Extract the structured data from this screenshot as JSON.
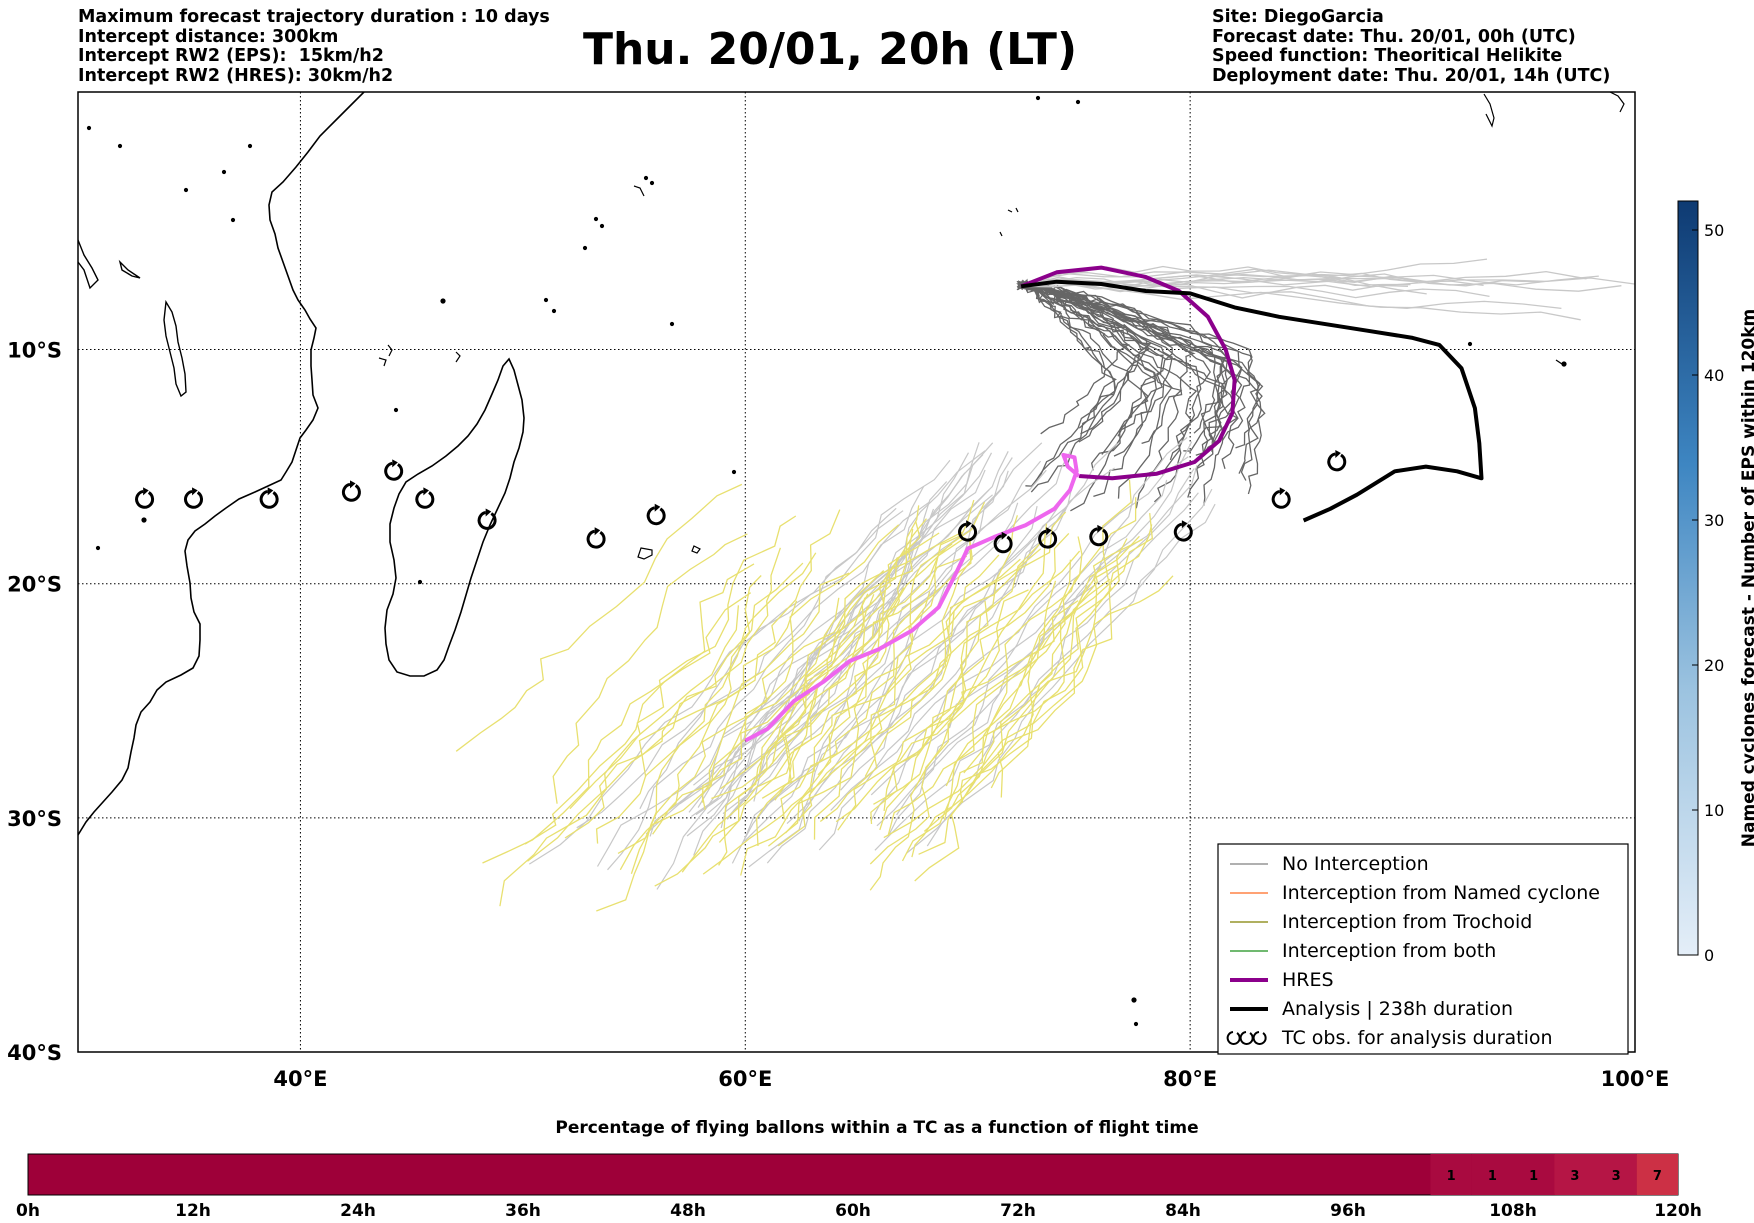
{
  "header_left": [
    "Maximum forecast trajectory duration : 10 days",
    "Intercept distance: 300km",
    "Intercept RW2 (EPS):  15km/h2",
    "Intercept RW2 (HRES): 30km/h2"
  ],
  "header_right": [
    "Site: DiegoGarcia",
    "Forecast date: Thu. 20/01, 00h (UTC)",
    "Speed function: Theoritical Helikite",
    "Deployment date: Thu. 20/01, 14h (UTC)"
  ],
  "title": "Thu. 20/01, 20h (LT)",
  "map": {
    "lon_range": [
      30,
      100
    ],
    "lat_range": [
      -40,
      1
    ],
    "lon_ticks": [
      {
        "v": 40,
        "label": "40°E"
      },
      {
        "v": 60,
        "label": "60°E"
      },
      {
        "v": 80,
        "label": "80°E"
      },
      {
        "v": 100,
        "label": "100°E"
      }
    ],
    "lat_ticks": [
      {
        "v": -10,
        "label": "10°S"
      },
      {
        "v": -20,
        "label": "20°S"
      },
      {
        "v": -30,
        "label": "30°S"
      },
      {
        "v": -40,
        "label": "40°S"
      }
    ],
    "grid": "dotted",
    "site_lonlat": [
      72.4,
      -7.3
    ],
    "colors": {
      "eps_no_interception": "#666666",
      "eps_light": "#c8c8c8",
      "eps_yellow": "#e8e070",
      "hres_purple": "#8b008b",
      "hres_pink": "#ee66ee",
      "analysis": "#000000",
      "coast": "#000000"
    },
    "hres_track": [
      [
        72.4,
        -7.3
      ],
      [
        74,
        -6.7
      ],
      [
        76,
        -6.5
      ],
      [
        78,
        -6.9
      ],
      [
        79.5,
        -7.5
      ],
      [
        80.8,
        -8.6
      ],
      [
        81.6,
        -10
      ],
      [
        82,
        -11.3
      ],
      [
        81.9,
        -12.7
      ],
      [
        81.3,
        -13.9
      ],
      [
        80.2,
        -14.8
      ],
      [
        78.5,
        -15.3
      ],
      [
        76.5,
        -15.5
      ],
      [
        75,
        -15.4
      ]
    ],
    "hres_track_late": [
      [
        75,
        -15.4
      ],
      [
        74.5,
        -15
      ],
      [
        74.3,
        -14.5
      ],
      [
        74.8,
        -14.6
      ],
      [
        74.9,
        -15.2
      ],
      [
        74.6,
        -16
      ],
      [
        73.9,
        -16.8
      ],
      [
        72.6,
        -17.5
      ],
      [
        71.2,
        -18
      ],
      [
        70,
        -18.5
      ],
      [
        69.5,
        -19.5
      ],
      [
        68.7,
        -21
      ],
      [
        67.5,
        -22
      ],
      [
        66,
        -22.8
      ],
      [
        64.7,
        -23.3
      ],
      [
        63.5,
        -24.2
      ],
      [
        62.2,
        -25
      ],
      [
        61,
        -26.2
      ],
      [
        60,
        -26.7
      ]
    ],
    "analysis_track": [
      [
        72.4,
        -7.3
      ],
      [
        74,
        -7.1
      ],
      [
        76,
        -7.2
      ],
      [
        78,
        -7.5
      ],
      [
        80,
        -7.6
      ],
      [
        82,
        -8.2
      ],
      [
        84,
        -8.6
      ],
      [
        86,
        -8.9
      ],
      [
        88,
        -9.2
      ],
      [
        90,
        -9.5
      ],
      [
        91.2,
        -9.8
      ],
      [
        92.2,
        -10.8
      ],
      [
        92.8,
        -12.5
      ],
      [
        93,
        -14
      ],
      [
        93.1,
        -15.5
      ],
      [
        92,
        -15.2
      ],
      [
        90.6,
        -15
      ],
      [
        89.2,
        -15.2
      ],
      [
        87.5,
        -16.2
      ],
      [
        86.3,
        -16.8
      ],
      [
        85.1,
        -17.3
      ]
    ],
    "tc_obs": [
      [
        33,
        -16.4
      ],
      [
        35.2,
        -16.4
      ],
      [
        38.6,
        -16.4
      ],
      [
        42.3,
        -16.1
      ],
      [
        44.2,
        -15.2
      ],
      [
        45.6,
        -16.4
      ],
      [
        48.4,
        -17.3
      ],
      [
        53.3,
        -18.1
      ],
      [
        56,
        -17.1
      ],
      [
        70,
        -17.8
      ],
      [
        71.6,
        -18.3
      ],
      [
        73.6,
        -18.1
      ],
      [
        75.9,
        -18
      ],
      [
        79.7,
        -17.8
      ],
      [
        84.1,
        -16.4
      ],
      [
        86.6,
        -14.8
      ]
    ]
  },
  "legend": [
    {
      "label": "No Interception",
      "color": "#808080",
      "width": 1.2,
      "type": "line"
    },
    {
      "label": "Interception from Named cyclone",
      "color": "#ff6a22",
      "width": 1.2,
      "type": "line"
    },
    {
      "label": "Interception from Trochoid",
      "color": "#808000",
      "width": 1.2,
      "type": "line"
    },
    {
      "label": "Interception from both",
      "color": "#1a8f1a",
      "width": 1.2,
      "type": "line"
    },
    {
      "label": "HRES",
      "color": "#8b008b",
      "width": 4,
      "type": "line"
    },
    {
      "label": "Analysis | 238h duration",
      "color": "#000000",
      "width": 4,
      "type": "line"
    },
    {
      "label": "TC obs. for analysis duration",
      "type": "symbol"
    }
  ],
  "colorbar": {
    "label": "Named cyclones forecast - Number of EPS within 120km",
    "ticks": [
      0,
      10,
      20,
      30,
      40,
      50
    ],
    "range": [
      0,
      52
    ],
    "color_low": "#e4eef8",
    "color_high": "#0e3a72"
  },
  "timebar": {
    "title": "Percentage of flying ballons within a TC as a function of flight time",
    "ticks": [
      "0h",
      "12h",
      "24h",
      "36h",
      "48h",
      "60h",
      "72h",
      "84h",
      "96h",
      "108h",
      "120h"
    ],
    "bg_color": "#9e0039",
    "cells": [
      {
        "h0": 102,
        "h1": 105,
        "value": "1",
        "color": "#a90a40"
      },
      {
        "h0": 105,
        "h1": 108,
        "value": "1",
        "color": "#a90a40"
      },
      {
        "h0": 108,
        "h1": 111,
        "value": "1",
        "color": "#a90a40"
      },
      {
        "h0": 111,
        "h1": 114,
        "value": "3",
        "color": "#b51545"
      },
      {
        "h0": 114,
        "h1": 117,
        "value": "3",
        "color": "#b51545"
      },
      {
        "h0": 117,
        "h1": 120,
        "value": "7",
        "color": "#cc3045"
      }
    ]
  }
}
